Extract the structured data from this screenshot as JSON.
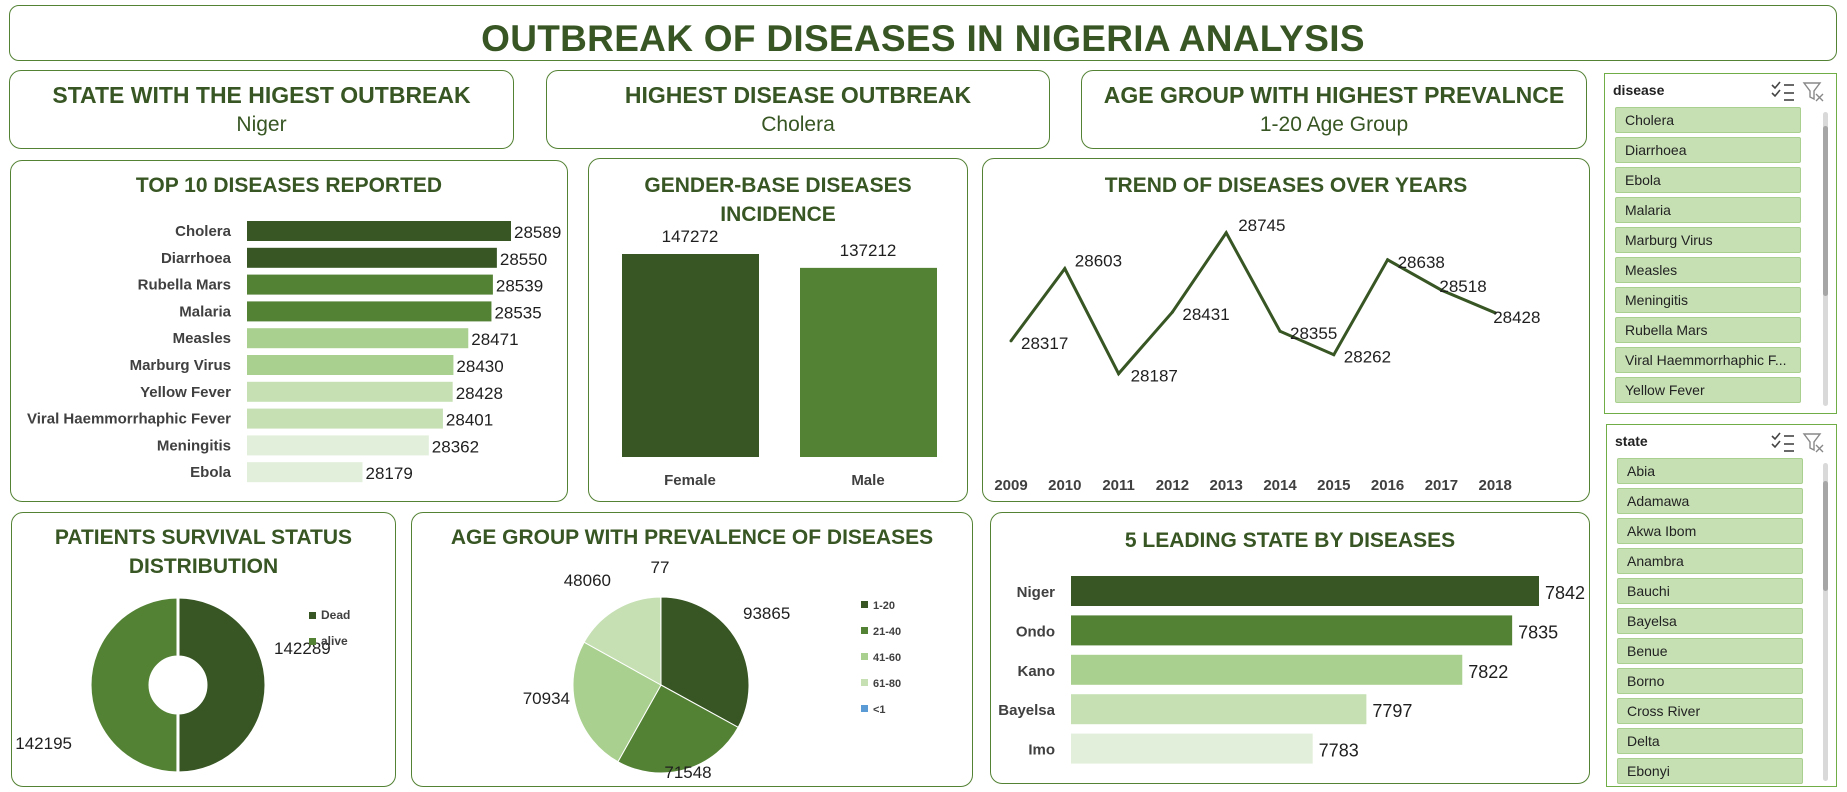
{
  "title": "OUTBREAK OF DISEASES IN NIGERIA ANALYSIS",
  "kpis": [
    {
      "heading": "STATE WITH THE HIGEST OUTBREAK",
      "value": "Niger"
    },
    {
      "heading": "HIGHEST DISEASE OUTBREAK",
      "value": "Cholera"
    },
    {
      "heading": "AGE GROUP WITH HIGHEST PREVALNCE",
      "value": "1-20 Age Group"
    }
  ],
  "colors": {
    "dark_green": "#375623",
    "mid_green": "#548235",
    "light_green": "#a9d08e",
    "pale_green": "#c6e0b4",
    "paler_green": "#e2efda",
    "blue": "#5b9bd5"
  },
  "chart_data": [
    {
      "id": "top10",
      "type": "bar",
      "orientation": "horizontal",
      "title": "TOP 10 DISEASES REPORTED",
      "categories": [
        "Cholera",
        "Diarrhoea",
        "Rubella Mars",
        "Malaria",
        "Measles",
        "Marburg Virus",
        "Yellow Fever",
        "Viral Haemmorrhaphic Fever",
        "Meningitis",
        "Ebola"
      ],
      "values": [
        28589,
        28550,
        28539,
        28535,
        28471,
        28430,
        28428,
        28401,
        28362,
        28179
      ],
      "bar_colors": [
        "#375623",
        "#375623",
        "#548235",
        "#548235",
        "#a9d08e",
        "#a9d08e",
        "#c6e0b4",
        "#c6e0b4",
        "#e2efda",
        "#e2efda"
      ]
    },
    {
      "id": "gender",
      "type": "bar",
      "title": "GENDER-BASE DISEASES INCIDENCE",
      "categories": [
        "Female",
        "Male"
      ],
      "values": [
        147272,
        137212
      ],
      "bar_colors": [
        "#375623",
        "#548235"
      ]
    },
    {
      "id": "trend",
      "type": "line",
      "title": "TREND OF DISEASES OVER YEARS",
      "x": [
        "2009",
        "2010",
        "2011",
        "2012",
        "2013",
        "2014",
        "2015",
        "2016",
        "2017",
        "2018"
      ],
      "values": [
        28317,
        28603,
        28187,
        28431,
        28745,
        28355,
        28262,
        28638,
        28518,
        28428
      ]
    },
    {
      "id": "survival",
      "type": "pie",
      "title": "PATIENTS SURVIVAL STATUS DISTRIBUTION",
      "labels": [
        "Dead",
        "alive"
      ],
      "values": [
        142289,
        142195
      ],
      "slice_colors": [
        "#375623",
        "#548235"
      ],
      "legend": "right"
    },
    {
      "id": "agegroup",
      "type": "pie",
      "title": "AGE GROUP WITH PREVALENCE OF DISEASES",
      "labels": [
        "1-20",
        "21-40",
        "41-60",
        "61-80",
        "<1"
      ],
      "values": [
        93865,
        71548,
        70934,
        48060,
        77
      ],
      "slice_colors": [
        "#375623",
        "#548235",
        "#a9d08e",
        "#c6e0b4",
        "#5b9bd5"
      ],
      "legend": "right"
    },
    {
      "id": "states",
      "type": "bar",
      "orientation": "horizontal",
      "title": "5 LEADING STATE BY DISEASES",
      "categories": [
        "Niger",
        "Ondo",
        "Kano",
        "Bayelsa",
        "Imo"
      ],
      "values": [
        7842,
        7835,
        7822,
        7797,
        7783
      ],
      "bar_colors": [
        "#375623",
        "#548235",
        "#a9d08e",
        "#c6e0b4",
        "#e2efda"
      ]
    }
  ],
  "slicers": {
    "disease": {
      "header": "disease",
      "items": [
        "Cholera",
        "Diarrhoea",
        "Ebola",
        "Malaria",
        "Marburg Virus",
        "Measles",
        "Meningitis",
        "Rubella Mars",
        "Viral Haemmorrhaphic F...",
        "Yellow Fever"
      ]
    },
    "state": {
      "header": "state",
      "items": [
        "Abia",
        "Adamawa",
        "Akwa Ibom",
        "Anambra",
        "Bauchi",
        "Bayelsa",
        "Benue",
        "Borno",
        "Cross River",
        "Delta",
        "Ebonyi"
      ]
    }
  }
}
